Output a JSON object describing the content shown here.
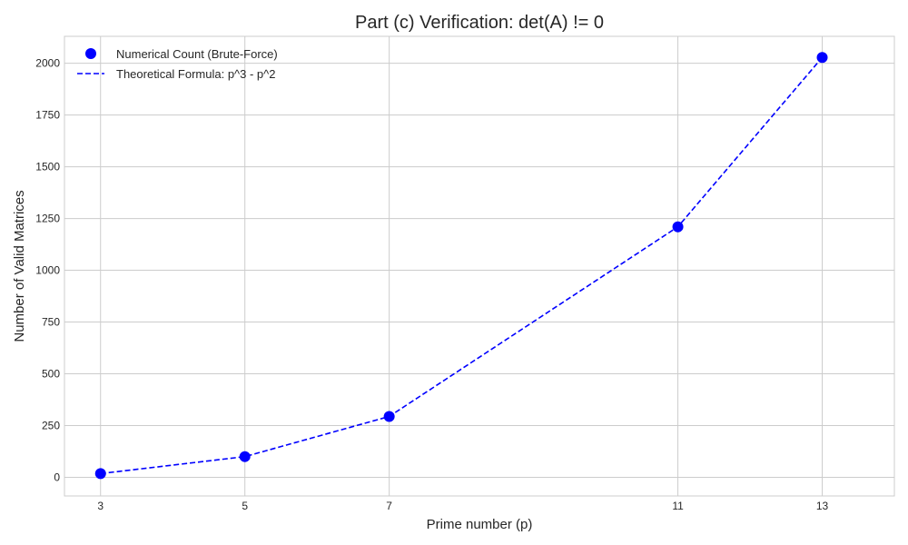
{
  "chart_data": {
    "type": "line",
    "title": "Part (c) Verification: det(A) != 0",
    "xlabel": "Prime number (p)",
    "ylabel": "Number of Valid Matrices",
    "x": [
      3,
      5,
      7,
      11,
      13
    ],
    "x_ticks": [
      "3",
      "5",
      "7",
      "11",
      "13"
    ],
    "y_ticks": [
      "0",
      "250",
      "500",
      "750",
      "1000",
      "1250",
      "1500",
      "1750",
      "2000"
    ],
    "xlim": [
      2.5,
      14.0
    ],
    "ylim": [
      -90,
      2130
    ],
    "grid": true,
    "legend_position": "top-left",
    "series": [
      {
        "name": "Numerical Count (Brute-Force)",
        "style": "markers",
        "color": "#0000ff",
        "values": [
          18,
          100,
          294,
          1210,
          2028
        ]
      },
      {
        "name": "Theoretical Formula: p^3 - p^2",
        "style": "dashed",
        "color": "#0000ff",
        "values": [
          18,
          100,
          294,
          1210,
          2028
        ]
      }
    ]
  }
}
